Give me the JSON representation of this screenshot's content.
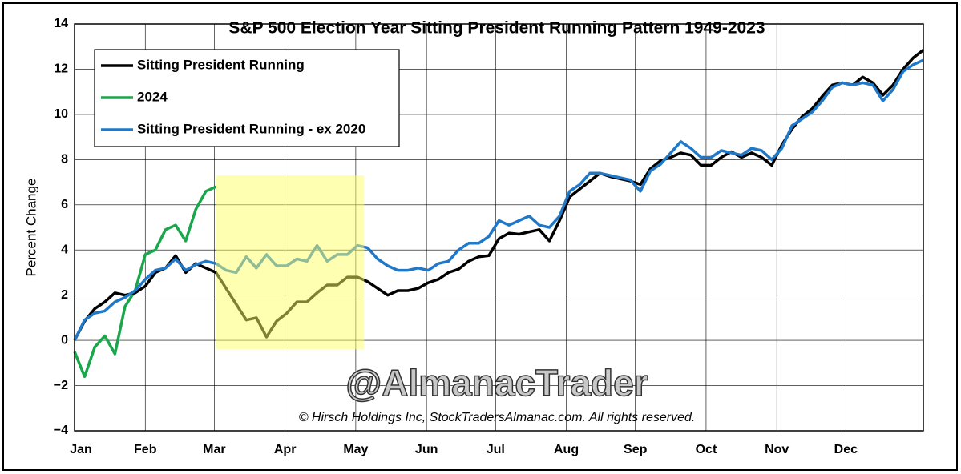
{
  "chart_data": {
    "type": "line",
    "title": "S&P 500 Election Year Sitting President Running Pattern 1949-2023",
    "y_label": "Percent Change",
    "watermark": "@AlmanacTrader",
    "annotation": "© Hirsch Holdings Inc, StockTradersAlmanac.com. All rights reserved.",
    "x": [
      0,
      3,
      6,
      9,
      12,
      15,
      18,
      21,
      24,
      27,
      30,
      33,
      36,
      39,
      42,
      45,
      48,
      51,
      54,
      57,
      60,
      63,
      66,
      69,
      72,
      75,
      78,
      81,
      84,
      87,
      90,
      93,
      96,
      99,
      102,
      105,
      108,
      111,
      114,
      117,
      120,
      123,
      126,
      129,
      132,
      135,
      138,
      141,
      144,
      147,
      150,
      153,
      156,
      159,
      162,
      165,
      168,
      171,
      174,
      177,
      180,
      183,
      186,
      189,
      192,
      195,
      198,
      201,
      204,
      207,
      210,
      213,
      216,
      219,
      222,
      225,
      228,
      231,
      234,
      237,
      240,
      243,
      246,
      249,
      252
    ],
    "series": [
      {
        "name": "Sitting President Running",
        "color": "#000000",
        "values": [
          0,
          0.85,
          1.4,
          1.7,
          2.1,
          2.0,
          2.1,
          2.4,
          3.0,
          3.2,
          3.75,
          3.0,
          3.4,
          3.2,
          3.0,
          2.3,
          1.6,
          0.9,
          1.0,
          0.15,
          0.85,
          1.2,
          1.7,
          1.7,
          2.1,
          2.45,
          2.45,
          2.8,
          2.8,
          2.6,
          2.3,
          2.0,
          2.2,
          2.2,
          2.3,
          2.55,
          2.7,
          3.0,
          3.15,
          3.5,
          3.7,
          3.75,
          4.5,
          4.75,
          4.7,
          4.8,
          4.9,
          4.4,
          5.3,
          6.35,
          6.7,
          7.05,
          7.4,
          7.25,
          7.15,
          7.05,
          6.9,
          7.6,
          7.95,
          8.1,
          8.3,
          8.2,
          7.75,
          7.75,
          8.1,
          8.35,
          8.1,
          8.3,
          8.1,
          7.75,
          8.65,
          9.35,
          9.9,
          10.25,
          10.8,
          11.3,
          11.4,
          11.3,
          11.65,
          11.4,
          10.85,
          11.3,
          12.0,
          12.5,
          12.85
        ]
      },
      {
        "name": "2024",
        "color": "#1aa64a",
        "values": [
          -0.5,
          -1.6,
          -0.3,
          0.2,
          -0.6,
          1.5,
          2.2,
          3.8,
          4.0,
          4.9,
          5.1,
          4.4,
          5.8,
          6.6,
          6.8,
          null,
          null,
          null,
          null,
          null,
          null,
          null,
          null,
          null,
          null,
          null,
          null,
          null,
          null,
          null,
          null,
          null,
          null,
          null,
          null,
          null,
          null,
          null,
          null,
          null,
          null,
          null,
          null,
          null,
          null,
          null,
          null,
          null,
          null,
          null,
          null,
          null,
          null,
          null,
          null,
          null,
          null,
          null,
          null,
          null,
          null,
          null,
          null,
          null,
          null,
          null,
          null,
          null,
          null,
          null,
          null,
          null,
          null,
          null,
          null,
          null,
          null,
          null,
          null,
          null,
          null,
          null,
          null,
          null,
          null
        ]
      },
      {
        "name": "Sitting President Running - ex 2020",
        "color": "#1f78c8",
        "values": [
          0,
          0.9,
          1.2,
          1.3,
          1.7,
          1.9,
          2.2,
          2.7,
          3.1,
          3.2,
          3.6,
          3.1,
          3.35,
          3.5,
          3.4,
          3.1,
          3.0,
          3.7,
          3.2,
          3.8,
          3.3,
          3.3,
          3.6,
          3.5,
          4.2,
          3.5,
          3.8,
          3.8,
          4.2,
          4.1,
          3.6,
          3.3,
          3.1,
          3.1,
          3.2,
          3.1,
          3.4,
          3.5,
          4.0,
          4.3,
          4.3,
          4.6,
          5.3,
          5.1,
          5.3,
          5.5,
          5.1,
          5.0,
          5.5,
          6.6,
          6.9,
          7.4,
          7.4,
          7.3,
          7.2,
          7.1,
          6.6,
          7.5,
          7.8,
          8.3,
          8.8,
          8.5,
          8.1,
          8.1,
          8.4,
          8.3,
          8.2,
          8.5,
          8.4,
          8.0,
          8.5,
          9.5,
          9.8,
          10.1,
          10.6,
          11.2,
          11.4,
          11.3,
          11.4,
          11.3,
          10.6,
          11.1,
          11.9,
          12.2,
          12.4
        ]
      }
    ],
    "highlight_x": [
      42,
      86
    ],
    "highlight_y": [
      -0.4,
      7.3
    ],
    "highlight_color": "#ffff66",
    "xlim": [
      0,
      252
    ],
    "xticks": [
      {
        "value": 0,
        "label": "Jan"
      },
      {
        "value": 21,
        "label": "Feb"
      },
      {
        "value": 41.5,
        "label": "Mar"
      },
      {
        "value": 62.5,
        "label": "Apr"
      },
      {
        "value": 83.5,
        "label": "May"
      },
      {
        "value": 104.5,
        "label": "Jun"
      },
      {
        "value": 125,
        "label": "Jul"
      },
      {
        "value": 146,
        "label": "Aug"
      },
      {
        "value": 166.5,
        "label": "Sep"
      },
      {
        "value": 187.5,
        "label": "Oct"
      },
      {
        "value": 208.5,
        "label": "Nov"
      },
      {
        "value": 229,
        "label": "Dec"
      }
    ],
    "ylim": [
      -4,
      14
    ],
    "yticks": [
      {
        "value": -4,
        "label": "−4"
      },
      {
        "value": -2,
        "label": "−2"
      },
      0,
      2,
      4,
      6,
      8,
      10,
      12,
      14
    ],
    "grid": true,
    "legend": "upper left"
  }
}
